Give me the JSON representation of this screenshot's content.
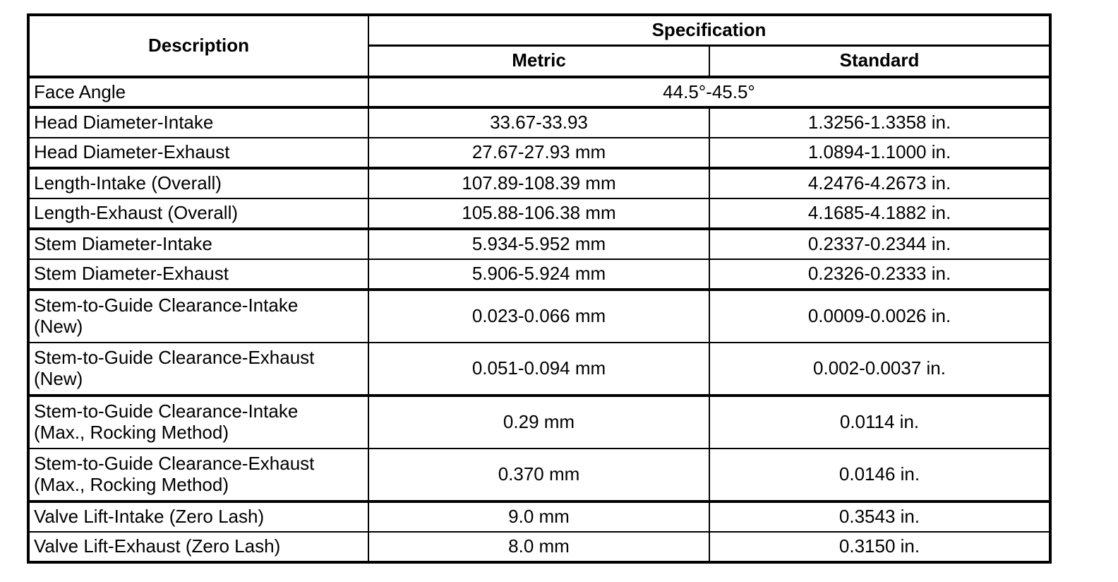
{
  "colors": {
    "background": "#ffffff",
    "border": "#000000",
    "text": "#000000"
  },
  "table": {
    "header": {
      "description": "Description",
      "specification": "Specification",
      "metric": "Metric",
      "standard": "Standard"
    },
    "rows": [
      {
        "description": "Face Angle",
        "span": "44.5°-45.5°"
      },
      {
        "description": "Head Diameter-Intake",
        "metric": "33.67-33.93",
        "standard": "1.3256-1.3358 in."
      },
      {
        "description": "Head Diameter-Exhaust",
        "metric": "27.67-27.93 mm",
        "standard": "1.0894-1.1000 in."
      },
      {
        "description": "Length-Intake (Overall)",
        "metric": "107.89-108.39 mm",
        "standard": "4.2476-4.2673 in."
      },
      {
        "description": "Length-Exhaust (Overall)",
        "metric": "105.88-106.38 mm",
        "standard": "4.1685-4.1882 in."
      },
      {
        "description": "Stem Diameter-Intake",
        "metric": "5.934-5.952 mm",
        "standard": "0.2337-0.2344 in."
      },
      {
        "description": "Stem Diameter-Exhaust",
        "metric": "5.906-5.924 mm",
        "standard": "0.2326-0.2333 in."
      },
      {
        "description": "Stem-to-Guide Clearance-Intake\n(New)",
        "metric": "0.023-0.066 mm",
        "standard": "0.0009-0.0026 in."
      },
      {
        "description": "Stem-to-Guide Clearance-Exhaust\n(New)",
        "metric": "0.051-0.094 mm",
        "standard": "0.002-0.0037 in."
      },
      {
        "description": "Stem-to-Guide Clearance-Intake\n(Max., Rocking Method)",
        "metric": "0.29 mm",
        "standard": "0.0114 in."
      },
      {
        "description": "Stem-to-Guide Clearance-Exhaust\n(Max., Rocking Method)",
        "metric": "0.370 mm",
        "standard": "0.0146 in."
      },
      {
        "description": "Valve Lift-Intake (Zero Lash)",
        "metric": "9.0 mm",
        "standard": "0.3543 in."
      },
      {
        "description": "Valve Lift-Exhaust (Zero Lash)",
        "metric": "8.0 mm",
        "standard": "0.3150 in."
      }
    ]
  }
}
